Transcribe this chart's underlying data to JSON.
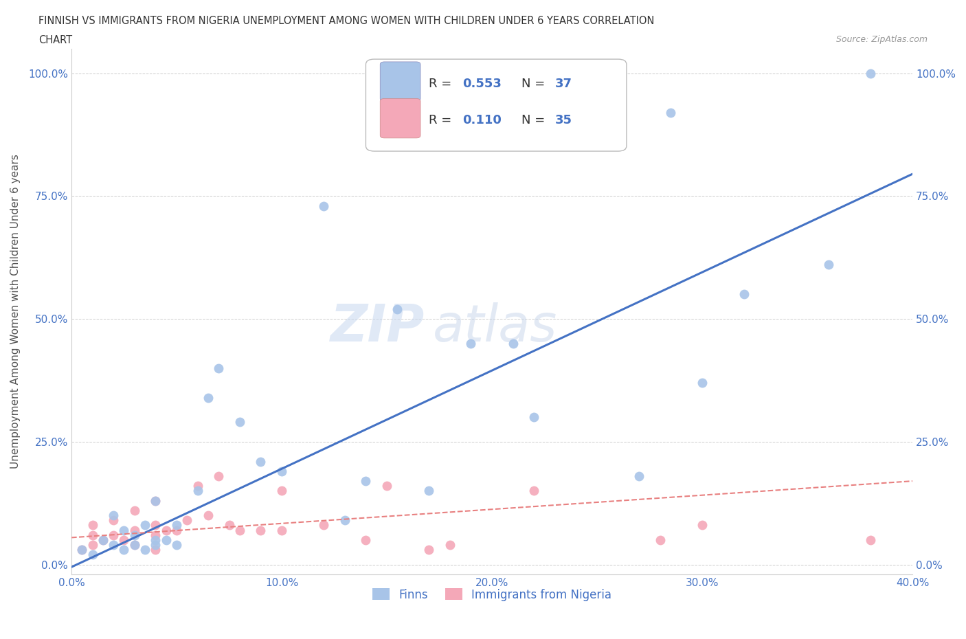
{
  "title_line1": "FINNISH VS IMMIGRANTS FROM NIGERIA UNEMPLOYMENT AMONG WOMEN WITH CHILDREN UNDER 6 YEARS CORRELATION",
  "title_line2": "CHART",
  "source_text": "Source: ZipAtlas.com",
  "ylabel": "Unemployment Among Women with Children Under 6 years",
  "legend_r1": "R = 0.553",
  "legend_n1": "N = 37",
  "legend_r2": "R = 0.110",
  "legend_n2": "N = 35",
  "finn_scatter_color": "#a8c4e8",
  "nigeria_scatter_color": "#f4a8b8",
  "finn_line_color": "#4472c4",
  "nigeria_line_color": "#e88080",
  "background_color": "#ffffff",
  "grid_color": "#cccccc",
  "xmin": 0.0,
  "xmax": 0.4,
  "ymin": -0.02,
  "ymax": 1.05,
  "yticks": [
    0.0,
    0.25,
    0.5,
    0.75,
    1.0
  ],
  "ytick_labels": [
    "0.0%",
    "25.0%",
    "50.0%",
    "75.0%",
    "100.0%"
  ],
  "xticks": [
    0.0,
    0.1,
    0.2,
    0.3,
    0.4
  ],
  "xtick_labels": [
    "0.0%",
    "10.0%",
    "20.0%",
    "30.0%",
    "40.0%"
  ],
  "finns_x": [
    0.005,
    0.01,
    0.015,
    0.02,
    0.02,
    0.025,
    0.025,
    0.03,
    0.03,
    0.035,
    0.035,
    0.04,
    0.04,
    0.04,
    0.045,
    0.05,
    0.05,
    0.06,
    0.065,
    0.07,
    0.08,
    0.09,
    0.1,
    0.12,
    0.13,
    0.14,
    0.155,
    0.17,
    0.19,
    0.21,
    0.22,
    0.27,
    0.285,
    0.3,
    0.32,
    0.36,
    0.38
  ],
  "finns_y": [
    0.03,
    0.02,
    0.05,
    0.04,
    0.1,
    0.03,
    0.07,
    0.04,
    0.06,
    0.03,
    0.08,
    0.04,
    0.05,
    0.13,
    0.05,
    0.04,
    0.08,
    0.15,
    0.34,
    0.4,
    0.29,
    0.21,
    0.19,
    0.73,
    0.09,
    0.17,
    0.52,
    0.15,
    0.45,
    0.45,
    0.3,
    0.18,
    0.92,
    0.37,
    0.55,
    0.61,
    1.0
  ],
  "nigeria_x": [
    0.005,
    0.01,
    0.01,
    0.01,
    0.015,
    0.02,
    0.02,
    0.025,
    0.03,
    0.03,
    0.03,
    0.04,
    0.04,
    0.04,
    0.04,
    0.045,
    0.05,
    0.055,
    0.06,
    0.065,
    0.07,
    0.075,
    0.08,
    0.09,
    0.1,
    0.1,
    0.12,
    0.14,
    0.15,
    0.17,
    0.18,
    0.22,
    0.28,
    0.3,
    0.38
  ],
  "nigeria_y": [
    0.03,
    0.04,
    0.06,
    0.08,
    0.05,
    0.06,
    0.09,
    0.05,
    0.04,
    0.07,
    0.11,
    0.03,
    0.06,
    0.08,
    0.13,
    0.07,
    0.07,
    0.09,
    0.16,
    0.1,
    0.18,
    0.08,
    0.07,
    0.07,
    0.07,
    0.15,
    0.08,
    0.05,
    0.16,
    0.03,
    0.04,
    0.15,
    0.05,
    0.08,
    0.05
  ],
  "finn_trend_x": [
    0.0,
    0.4
  ],
  "finn_trend_y": [
    -0.005,
    0.795
  ],
  "nigeria_trend_x": [
    0.0,
    0.4
  ],
  "nigeria_trend_y": [
    0.055,
    0.17
  ],
  "watermark_text": "ZIP",
  "watermark_text2": "atlas"
}
